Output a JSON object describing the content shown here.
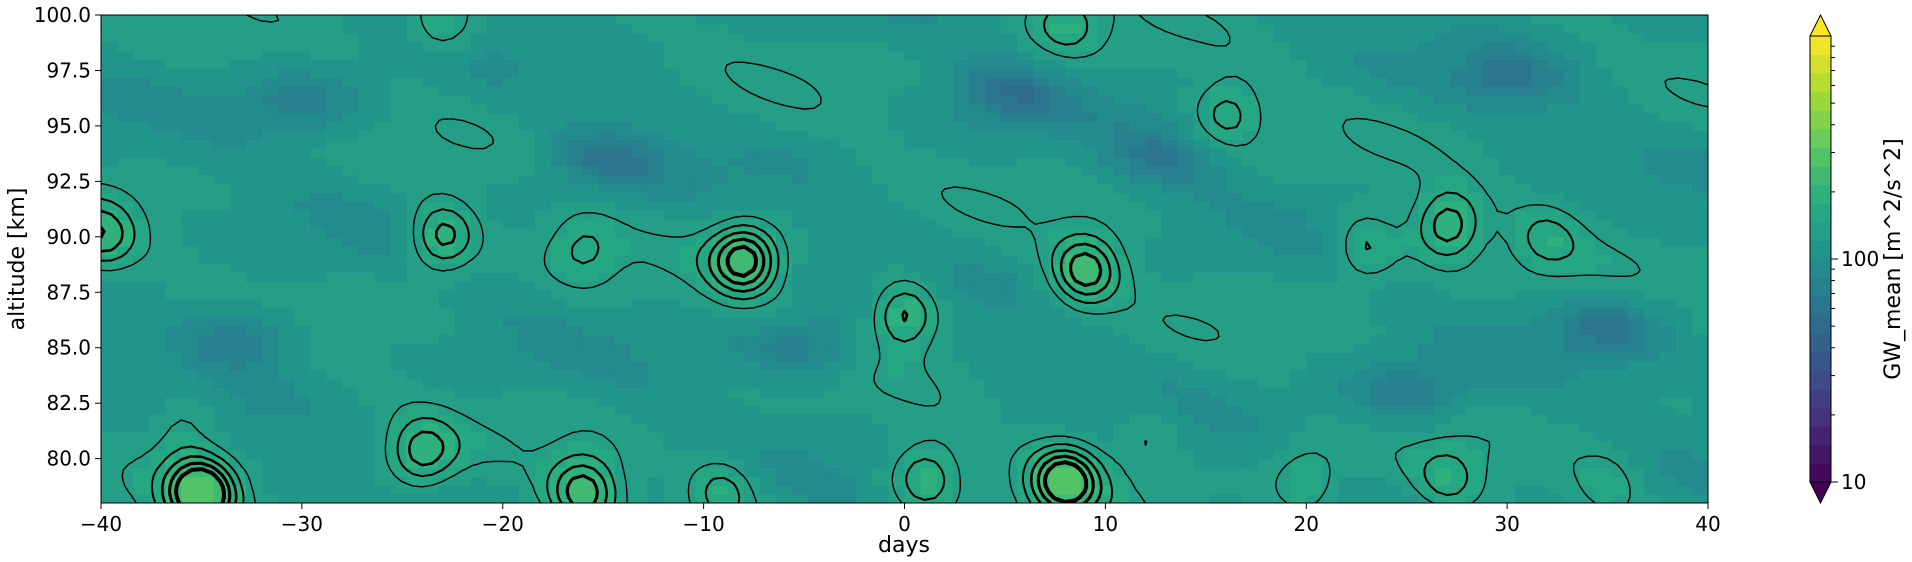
{
  "chart_data": {
    "type": "heatmap",
    "title": "",
    "xlabel": "days",
    "ylabel": "altitude [km]",
    "xlim": [
      -40,
      40
    ],
    "ylim": [
      78,
      100
    ],
    "x_ticks": [
      -40,
      -30,
      -20,
      -10,
      0,
      10,
      20,
      30,
      40
    ],
    "x_tick_labels": [
      "−40",
      "−30",
      "−20",
      "−10",
      "0",
      "10",
      "20",
      "30",
      "40"
    ],
    "y_ticks": [
      80.0,
      82.5,
      85.0,
      87.5,
      90.0,
      92.5,
      95.0,
      97.5,
      100.0
    ],
    "y_tick_labels": [
      "80.0",
      "82.5",
      "85.0",
      "87.5",
      "90.0",
      "92.5",
      "95.0",
      "97.5",
      "100.0"
    ],
    "colorbar": {
      "label": "GW_mean [m^2/s^2]",
      "scale": "log",
      "ticks": [
        10,
        100
      ],
      "tick_labels": [
        "10",
        "100"
      ],
      "range": [
        10,
        1000
      ],
      "colormap": "viridis",
      "extend": "both"
    },
    "hotspots": [
      {
        "x": -8,
        "y": 89.0,
        "v": 250
      },
      {
        "x": -23,
        "y": 90.0,
        "v": 210
      },
      {
        "x": 0,
        "y": 86.5,
        "v": 210
      },
      {
        "x": 9,
        "y": 88.5,
        "v": 230
      },
      {
        "x": 27,
        "y": 90.5,
        "v": 210
      },
      {
        "x": 23,
        "y": 89.5,
        "v": 180
      },
      {
        "x": -40,
        "y": 90.0,
        "v": 200
      },
      {
        "x": -35,
        "y": 78.5,
        "v": 280
      },
      {
        "x": -16,
        "y": 78.5,
        "v": 230
      },
      {
        "x": 8,
        "y": 79.0,
        "v": 260
      },
      {
        "x": -24,
        "y": 80.2,
        "v": 200
      },
      {
        "x": 1,
        "y": 79.2,
        "v": 190
      },
      {
        "x": -9,
        "y": 78.6,
        "v": 180
      },
      {
        "x": 27,
        "y": 79.0,
        "v": 170
      },
      {
        "x": 20,
        "y": 79.0,
        "v": 170
      },
      {
        "x": 16,
        "y": 95.5,
        "v": 180
      },
      {
        "x": -16,
        "y": 89.5,
        "v": 160
      },
      {
        "x": 32,
        "y": 90.0,
        "v": 160
      },
      {
        "x": -23,
        "y": 99.5,
        "v": 170
      },
      {
        "x": 8,
        "y": 99.6,
        "v": 170
      },
      {
        "x": -36,
        "y": 81.5,
        "v": 160
      },
      {
        "x": 12,
        "y": 81.0,
        "v": 150
      },
      {
        "x": 35,
        "y": 79.0,
        "v": 150
      }
    ],
    "lowspots": [
      {
        "x": -33,
        "y": 85.5,
        "v": 60
      },
      {
        "x": -5,
        "y": 85.0,
        "v": 65
      },
      {
        "x": 25,
        "y": 83.0,
        "v": 65
      },
      {
        "x": 35,
        "y": 86.0,
        "v": 70
      },
      {
        "x": -15,
        "y": 93.5,
        "v": 70
      },
      {
        "x": 5,
        "y": 96.5,
        "v": 70
      },
      {
        "x": -30,
        "y": 96.0,
        "v": 70
      },
      {
        "x": 13,
        "y": 93.5,
        "v": 75
      },
      {
        "x": 30,
        "y": 97.0,
        "v": 75
      }
    ]
  }
}
